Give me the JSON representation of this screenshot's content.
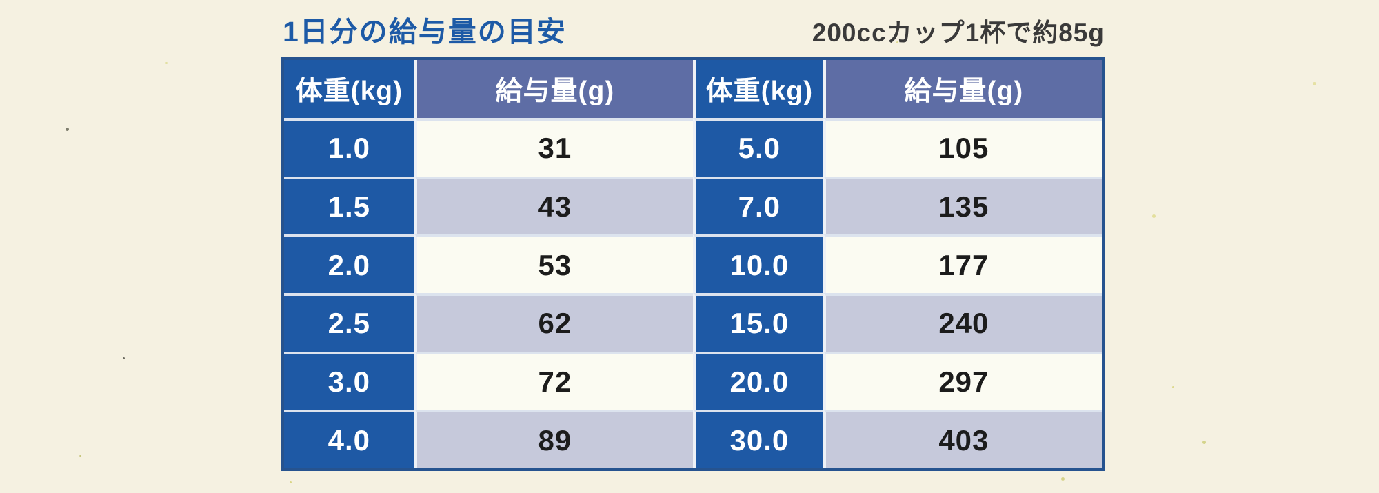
{
  "page": {
    "title": "1日分の給与量の目安",
    "note": "200ccカップ1杯で約85g"
  },
  "table": {
    "headers": [
      "体重(kg)",
      "給与量(g)",
      "体重(kg)",
      "給与量(g)"
    ],
    "rows": [
      [
        "1.0",
        "31",
        "5.0",
        "105"
      ],
      [
        "1.5",
        "43",
        "7.0",
        "135"
      ],
      [
        "2.0",
        "53",
        "10.0",
        "177"
      ],
      [
        "2.5",
        "62",
        "15.0",
        "240"
      ],
      [
        "3.0",
        "72",
        "20.0",
        "297"
      ],
      [
        "4.0",
        "89",
        "30.0",
        "403"
      ]
    ]
  },
  "colors": {
    "page_bg": "#f5f1e1",
    "weight_cell_bg": "#1e59a5",
    "amount_header_bg": "#5e6da5",
    "amount_row_bg": "#fbfbf2",
    "amount_row_alt_bg": "#c6c9db",
    "title_color": "#1d5aa6",
    "note_color": "#3a3a3a",
    "table_border": "#26538f"
  },
  "chart_data": {
    "type": "table",
    "title": "1日分の給与量の目安",
    "note": "200ccカップ1杯で約85g",
    "columns": [
      "体重(kg)",
      "給与量(g)"
    ],
    "rows": [
      [
        1.0,
        31
      ],
      [
        1.5,
        43
      ],
      [
        2.0,
        53
      ],
      [
        2.5,
        62
      ],
      [
        3.0,
        72
      ],
      [
        4.0,
        89
      ],
      [
        5.0,
        105
      ],
      [
        7.0,
        135
      ],
      [
        10.0,
        177
      ],
      [
        15.0,
        240
      ],
      [
        20.0,
        297
      ],
      [
        30.0,
        403
      ]
    ]
  }
}
